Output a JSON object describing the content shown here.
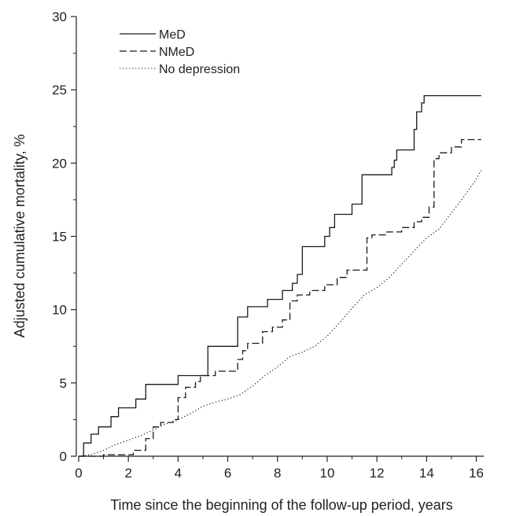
{
  "chart_data": {
    "type": "line",
    "xlabel": "Time since the beginning of the follow-up period, years",
    "ylabel": "Adjusted cumulative mortality, %",
    "xlim": [
      0,
      16.3
    ],
    "ylim": [
      0,
      30
    ],
    "xticks": [
      0,
      2,
      4,
      6,
      8,
      10,
      12,
      14,
      16
    ],
    "yticks": [
      0,
      5,
      10,
      15,
      20,
      25,
      30
    ],
    "grid": false,
    "legend_position": "top-left",
    "series": [
      {
        "name": "MeD",
        "style": "solid",
        "x": [
          0,
          0.2,
          0.2,
          0.5,
          0.5,
          0.8,
          0.8,
          1.3,
          1.3,
          1.6,
          1.6,
          2.3,
          2.3,
          2.7,
          2.7,
          4.0,
          4.0,
          5.2,
          5.2,
          6.4,
          6.4,
          6.8,
          6.8,
          7.6,
          7.6,
          8.2,
          8.2,
          8.6,
          8.6,
          8.8,
          8.8,
          9.0,
          9.0,
          9.9,
          9.9,
          10.1,
          10.1,
          10.3,
          10.3,
          11.0,
          11.0,
          11.4,
          11.4,
          12.6,
          12.6,
          12.7,
          12.7,
          12.8,
          12.8,
          13.5,
          13.5,
          13.6,
          13.6,
          13.8,
          13.8,
          13.9,
          13.9,
          16.2
        ],
        "y": [
          0,
          0,
          0.9,
          0.9,
          1.5,
          1.5,
          2.0,
          2.0,
          2.7,
          2.7,
          3.3,
          3.3,
          3.9,
          3.9,
          4.9,
          4.9,
          5.5,
          5.5,
          7.5,
          7.5,
          9.5,
          9.5,
          10.2,
          10.2,
          10.7,
          10.7,
          11.3,
          11.3,
          11.8,
          11.8,
          12.4,
          12.4,
          14.3,
          14.3,
          15.0,
          15.0,
          15.6,
          15.6,
          16.5,
          16.5,
          17.2,
          17.2,
          19.2,
          19.2,
          19.7,
          19.7,
          20.2,
          20.2,
          20.9,
          20.9,
          22.3,
          22.3,
          23.5,
          23.5,
          24.1,
          24.1,
          24.6,
          24.6
        ]
      },
      {
        "name": "NMeD",
        "style": "dashed",
        "x": [
          0,
          1.0,
          1.0,
          2.2,
          2.2,
          2.7,
          2.7,
          3.0,
          3.0,
          3.3,
          3.3,
          3.8,
          3.8,
          4.0,
          4.0,
          4.3,
          4.3,
          4.7,
          4.7,
          4.9,
          4.9,
          5.5,
          5.5,
          6.4,
          6.4,
          6.6,
          6.6,
          6.8,
          6.8,
          7.4,
          7.4,
          7.8,
          7.8,
          8.2,
          8.2,
          8.5,
          8.5,
          8.8,
          8.8,
          9.3,
          9.3,
          9.9,
          9.9,
          10.4,
          10.4,
          10.8,
          10.8,
          11.6,
          11.6,
          11.8,
          11.8,
          12.4,
          12.4,
          13.0,
          13.0,
          13.5,
          13.5,
          13.8,
          13.8,
          14.1,
          14.1,
          14.3,
          14.3,
          14.5,
          14.5,
          15.0,
          15.0,
          15.4,
          15.4,
          16.2
        ],
        "y": [
          0,
          0,
          0.1,
          0.1,
          0.4,
          0.4,
          1.2,
          1.2,
          2.0,
          2.0,
          2.3,
          2.3,
          2.5,
          2.5,
          4.0,
          4.0,
          4.7,
          4.7,
          5.1,
          5.1,
          5.5,
          5.5,
          5.8,
          5.8,
          6.6,
          6.6,
          7.2,
          7.2,
          7.7,
          7.7,
          8.5,
          8.5,
          8.8,
          8.8,
          9.3,
          9.3,
          10.6,
          10.6,
          11.0,
          11.0,
          11.3,
          11.3,
          11.7,
          11.7,
          12.2,
          12.2,
          12.7,
          12.7,
          14.9,
          14.9,
          15.1,
          15.1,
          15.3,
          15.3,
          15.6,
          15.6,
          16.0,
          16.0,
          16.3,
          16.3,
          17.0,
          17.0,
          20.3,
          20.3,
          20.7,
          20.7,
          21.1,
          21.1,
          21.6,
          21.6
        ]
      },
      {
        "name": "No depression",
        "style": "dotted",
        "x": [
          0,
          0.5,
          1.0,
          1.5,
          2.0,
          2.5,
          3.0,
          3.5,
          4.0,
          4.5,
          5.0,
          5.5,
          6.0,
          6.5,
          7.0,
          7.5,
          8.0,
          8.5,
          9.0,
          9.5,
          10.0,
          10.5,
          11.0,
          11.5,
          12.0,
          12.5,
          13.0,
          13.5,
          14.0,
          14.5,
          15.0,
          15.5,
          16.0,
          16.2
        ],
        "y": [
          0,
          0.1,
          0.4,
          0.8,
          1.1,
          1.4,
          1.8,
          2.2,
          2.5,
          2.9,
          3.4,
          3.7,
          3.9,
          4.2,
          4.8,
          5.5,
          6.1,
          6.8,
          7.1,
          7.5,
          8.2,
          9.1,
          10.1,
          11.0,
          11.5,
          12.2,
          13.1,
          14.0,
          14.9,
          15.5,
          16.6,
          17.7,
          18.9,
          19.5
        ]
      }
    ]
  }
}
